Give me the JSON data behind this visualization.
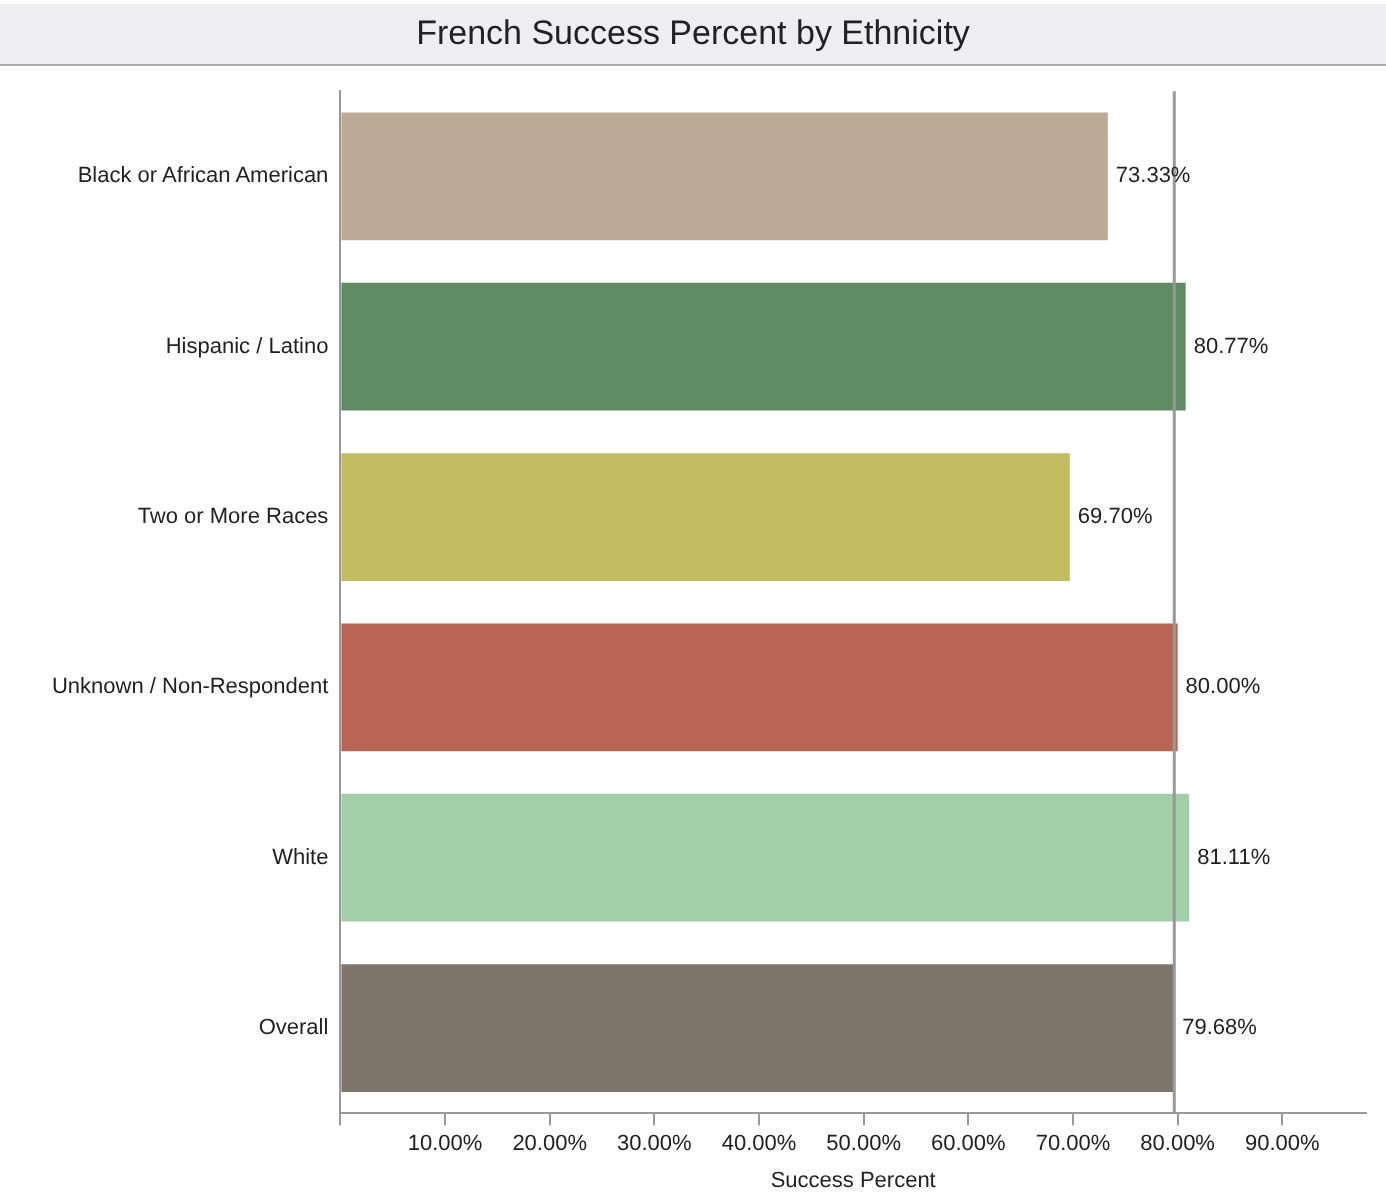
{
  "chart_data": {
    "type": "bar",
    "orientation": "horizontal",
    "title": "French Success Percent by Ethnicity",
    "xlabel": "Success Percent",
    "categories": [
      "Black or African American",
      "Hispanic / Latino",
      "Two or More Races",
      "Unknown / Non-Respondent",
      "White",
      "Overall"
    ],
    "values": [
      73.33,
      80.77,
      69.7,
      80.0,
      81.11,
      79.68
    ],
    "colors": [
      "#bcab97",
      "#5f8c63",
      "#c2bd60",
      "#b86553",
      "#a3cfa8",
      "#7f756b"
    ],
    "value_labels": [
      "73.33%",
      "80.77%",
      "69.70%",
      "80.00%",
      "81.11%",
      "79.68%"
    ],
    "xlim": [
      0,
      98
    ],
    "xticks": [
      {
        "value": 0,
        "label": null
      },
      {
        "value": 10,
        "label": "10.00%"
      },
      {
        "value": 20,
        "label": "20.00%"
      },
      {
        "value": 30,
        "label": "30.00%"
      },
      {
        "value": 40,
        "label": "40.00%"
      },
      {
        "value": 50,
        "label": "50.00%"
      },
      {
        "value": 60,
        "label": "60.00%"
      },
      {
        "value": 70,
        "label": "70.00%"
      },
      {
        "value": 80,
        "label": "80.00%"
      },
      {
        "value": 90,
        "label": "90.00%"
      }
    ],
    "ref_lines": [
      {
        "axis": "x",
        "value": 79.68,
        "color": "#999999"
      }
    ],
    "grid": false,
    "legend": false
  }
}
